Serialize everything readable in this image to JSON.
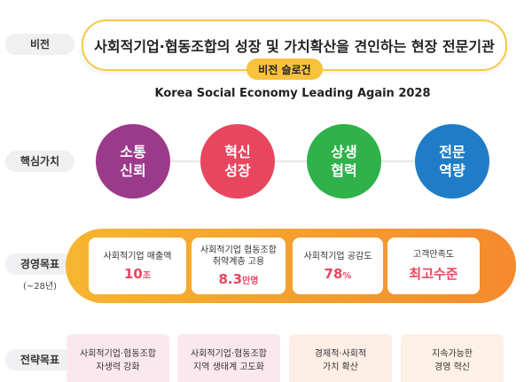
{
  "rows": {
    "vision": "비전",
    "core_values": "핵심가치",
    "goals": "경영목표",
    "goals_period": "(~28년)",
    "strategy": "전략목표"
  },
  "vision": {
    "statement": "사회적기업·협동조합의 성장 및 가치확산을 견인하는 현장 전문기관",
    "slogan_label": "비전 슬로건",
    "slogan": "Korea Social Economy Leading Again 2028"
  },
  "core_values": [
    {
      "line1": "소통",
      "line2": "신뢰",
      "color": "#9b3a8a"
    },
    {
      "line1": "혁신",
      "line2": "성장",
      "color": "#e8465f"
    },
    {
      "line1": "상생",
      "line2": "협력",
      "color": "#2fb24a"
    },
    {
      "line1": "전문",
      "line2": "역량",
      "color": "#1f7dc8"
    }
  ],
  "goals": [
    {
      "label": "사회적기업 매출액",
      "value": "10",
      "unit": "조"
    },
    {
      "label": "사회적기업 협동조합\n취약계층 고용",
      "value": "8.3",
      "unit": "만명"
    },
    {
      "label": "사회적기업 공감도",
      "value": "78",
      "unit": "%"
    },
    {
      "label": "고객만족도",
      "value": "최고수준",
      "unit": ""
    }
  ],
  "strategy": [
    {
      "text": "사회적기업·협동조합\n자생력 강화",
      "color": "#fbe8ee"
    },
    {
      "text": "사회적기업·협동조합\n지역 생태계 고도화",
      "color": "#fbe8ee"
    },
    {
      "text": "경제적·사회적\n가치 확산",
      "color": "#fdeee6"
    },
    {
      "text": "지속가능한\n경영 혁신",
      "color": "#fdf0e4"
    }
  ]
}
